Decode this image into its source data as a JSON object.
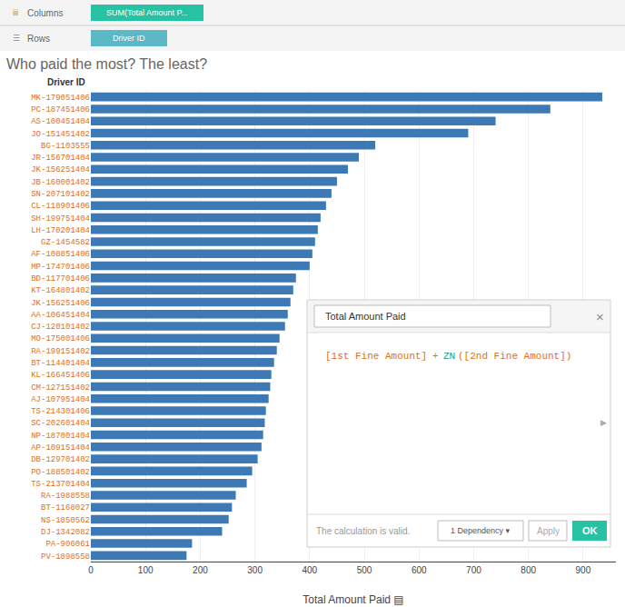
{
  "chart_data": {
    "type": "bar",
    "orientation": "horizontal",
    "title": "Who paid the most? The least?",
    "xlabel": "Total Amount Paid ▤",
    "ylabel": "Driver ID",
    "categories": [
      "MK-179051406",
      "PC-187451406",
      "AS-100451404",
      "JO-151451402",
      "BG-1103555",
      "JR-156701404",
      "JK-156251404",
      "JB-160001402",
      "SN-207101402",
      "CL-118901406",
      "SH-199751404",
      "LH-170201404",
      "GZ-1454582",
      "AF-108851406",
      "MP-174701406",
      "BD-117701406",
      "KT-164801402",
      "JK-156251406",
      "AA-106451404",
      "CJ-120101402",
      "MO-175001406",
      "RA-199151402",
      "BT-114401404",
      "KL-166451406",
      "CM-127151402",
      "AJ-107951404",
      "TS-214301406",
      "SC-202601404",
      "NP-187001404",
      "AP-109151404",
      "DB-129701402",
      "PO-188501402",
      "TS-213701404",
      "RA-1988558",
      "BT-1168027",
      "NS-1850562",
      "DJ-1342082",
      "PA-906061",
      "PV-1898558"
    ],
    "values": [
      935,
      840,
      740,
      690,
      520,
      490,
      470,
      450,
      440,
      430,
      420,
      415,
      410,
      405,
      400,
      375,
      370,
      365,
      360,
      355,
      345,
      340,
      335,
      330,
      328,
      325,
      320,
      318,
      315,
      312,
      305,
      295,
      285,
      265,
      258,
      252,
      240,
      185,
      175
    ],
    "color": "#3d7ab5",
    "xlim": [
      0,
      960
    ],
    "xticks": [
      0,
      100,
      200,
      300,
      400,
      500,
      600,
      700,
      800,
      900
    ],
    "grid": true,
    "annotations": [
      "iii",
      "Columns",
      "SUM(Total Amount P...",
      "☰",
      "Rows",
      "Driver ID",
      "Total Amount Paid",
      "×",
      "[1st Fine Amount]",
      "+",
      "ZN",
      "([2nd Fine Amount])",
      "▶",
      "The calculation is valid.",
      "1 Dependency ▾",
      "Apply",
      "OK"
    ]
  }
}
